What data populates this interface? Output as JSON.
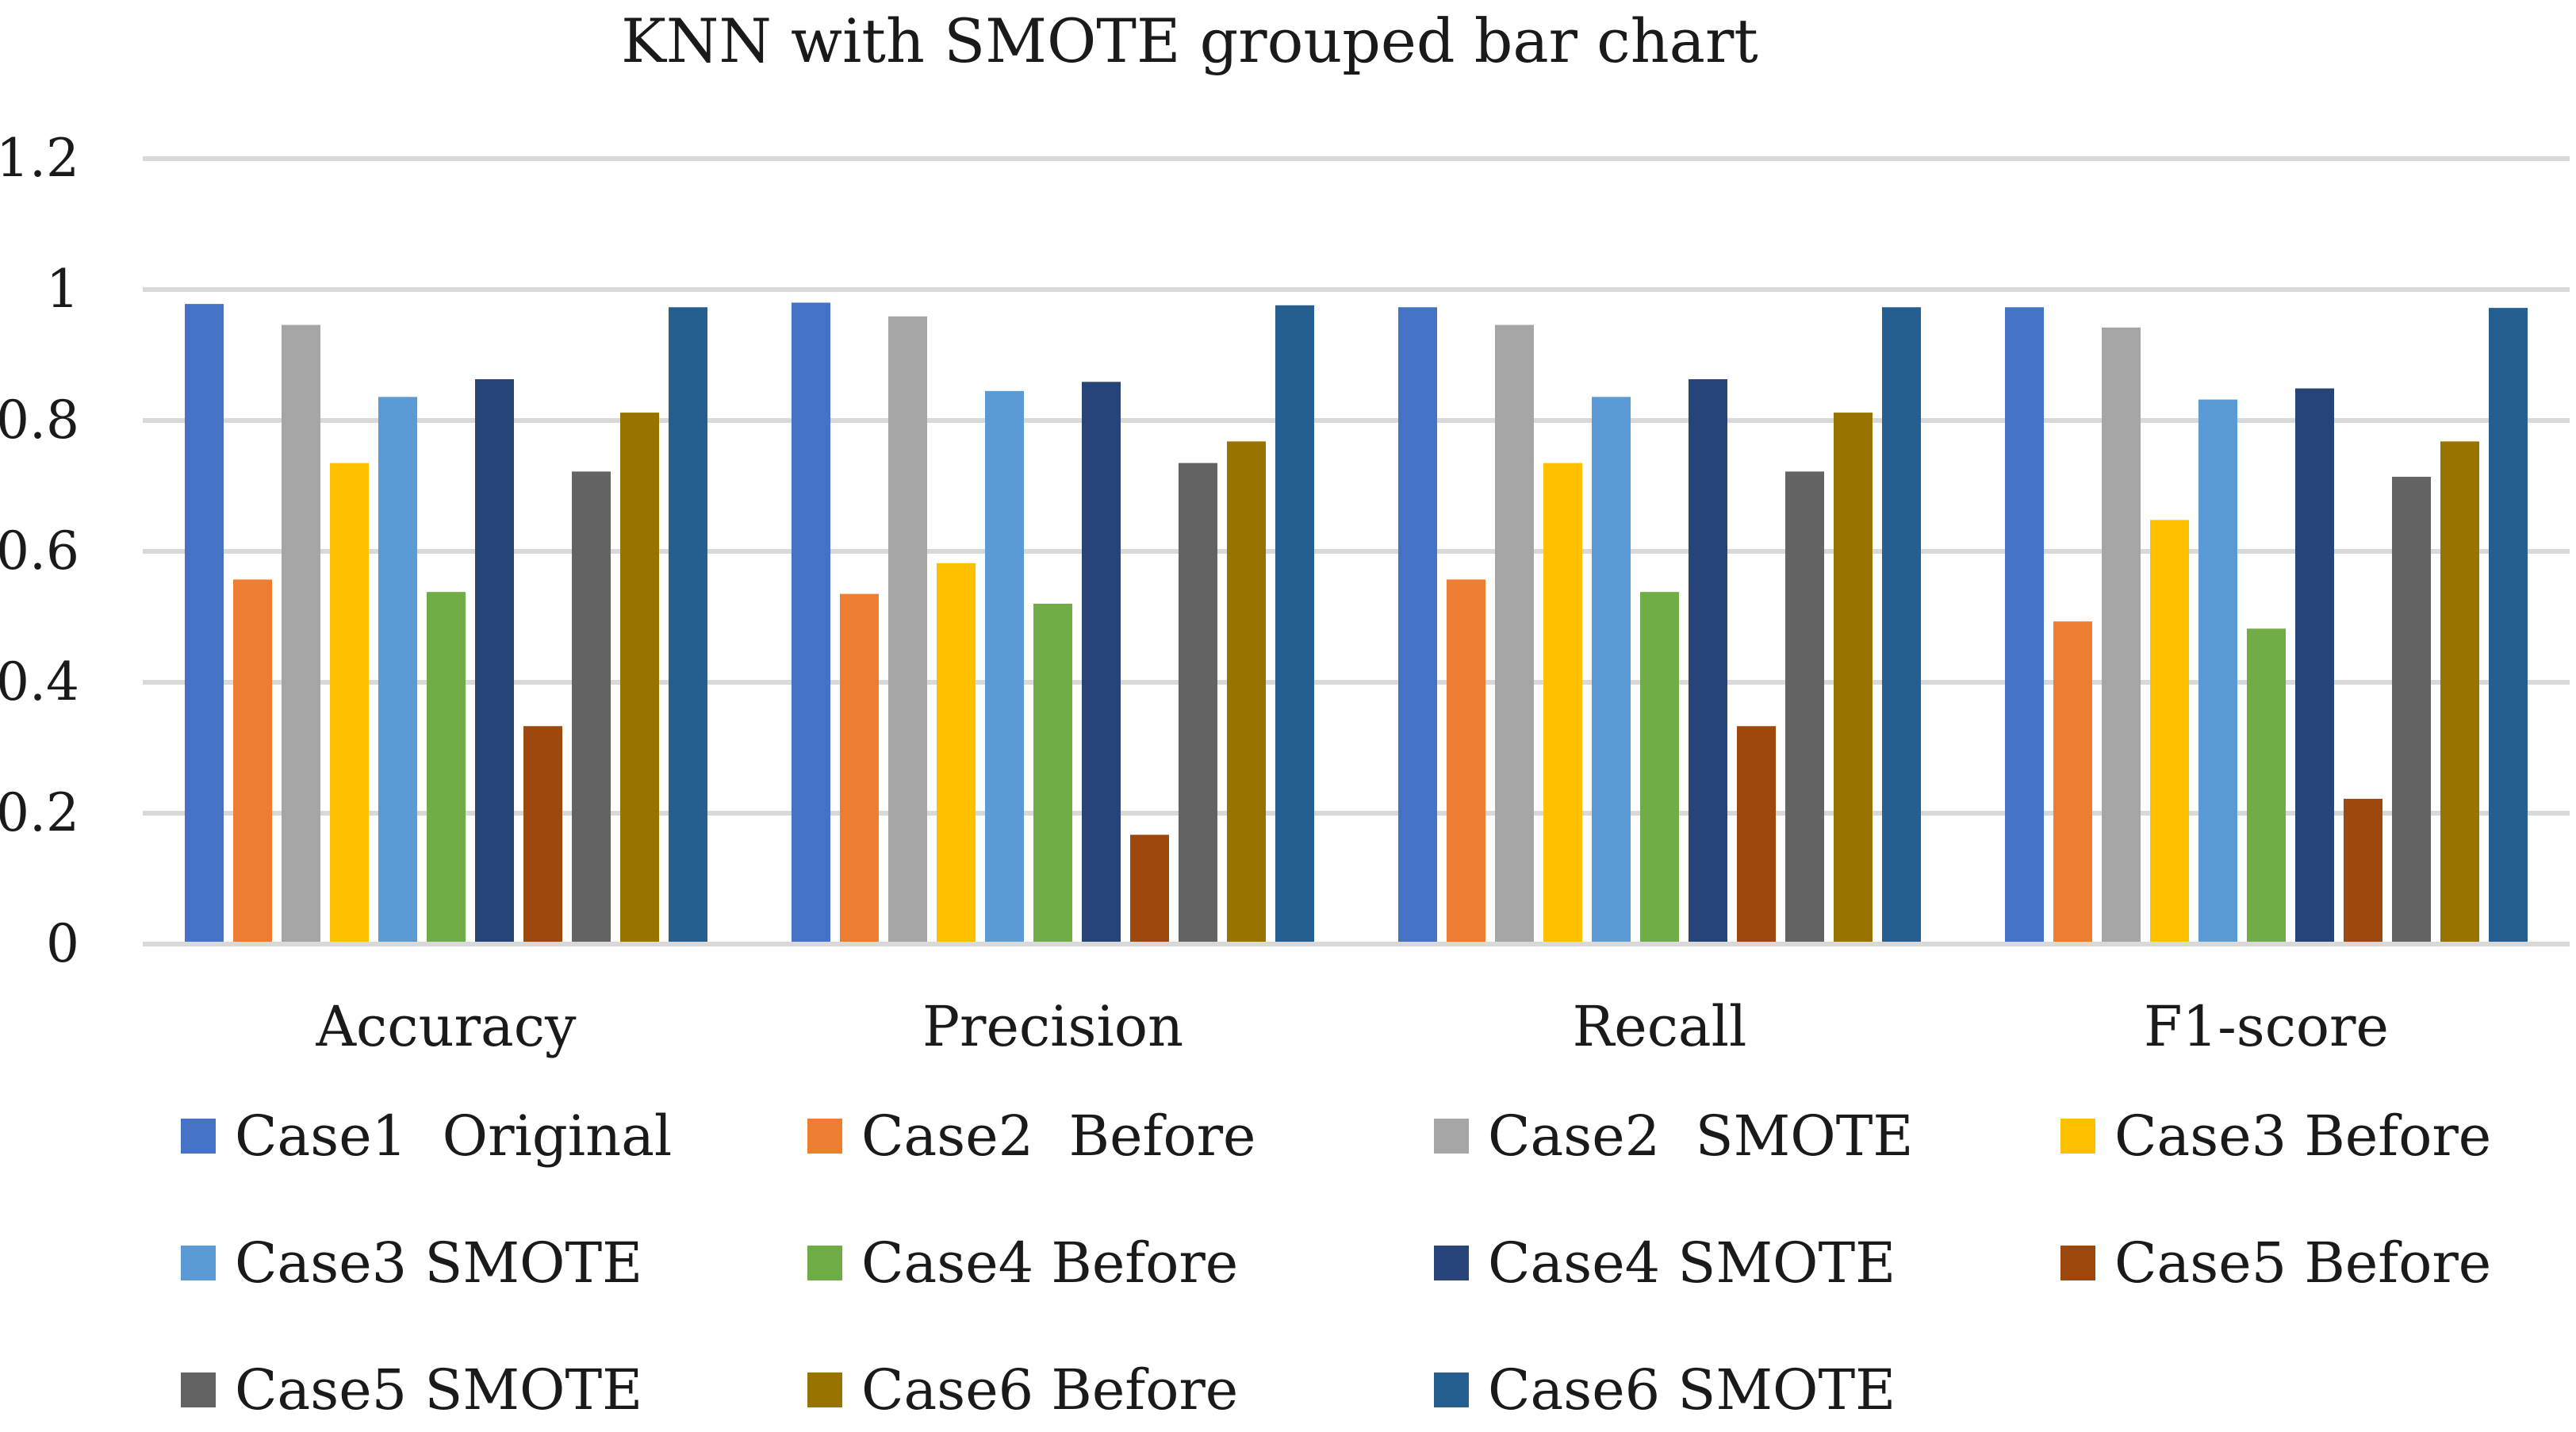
{
  "chart_data": {
    "type": "bar",
    "title": "KNN with SMOTE grouped bar chart",
    "xlabel": "",
    "ylabel": "",
    "ylim": [
      0,
      1.2
    ],
    "yticks": [
      "0",
      "0.2",
      "0.4",
      "0.6",
      "0.8",
      "1",
      "1.2"
    ],
    "grid": true,
    "legend_position": "bottom",
    "categories": [
      "Accuracy",
      "Precision",
      "Recall",
      "F1-score"
    ],
    "series": [
      {
        "name": "Case1  Original",
        "color": "#4472c4",
        "values": [
          0.978,
          0.98,
          0.973,
          0.973
        ]
      },
      {
        "name": "Case2  Before",
        "color": "#ed7d31",
        "values": [
          0.557,
          0.535,
          0.557,
          0.493
        ]
      },
      {
        "name": "Case2  SMOTE",
        "color": "#a5a5a5",
        "values": [
          0.946,
          0.959,
          0.946,
          0.942
        ]
      },
      {
        "name": "Case3 Before",
        "color": "#ffc000",
        "values": [
          0.735,
          0.582,
          0.735,
          0.648
        ]
      },
      {
        "name": "Case3 SMOTE",
        "color": "#5b9bd5",
        "values": [
          0.836,
          0.845,
          0.836,
          0.832
        ]
      },
      {
        "name": "Case4 Before",
        "color": "#70ad47",
        "values": [
          0.538,
          0.52,
          0.538,
          0.482
        ]
      },
      {
        "name": "Case4 SMOTE",
        "color": "#264478",
        "values": [
          0.863,
          0.859,
          0.863,
          0.849
        ]
      },
      {
        "name": "Case5 Before",
        "color": "#9e480e",
        "values": [
          0.333,
          0.167,
          0.333,
          0.222
        ]
      },
      {
        "name": "Case5 SMOTE",
        "color": "#636363",
        "values": [
          0.722,
          0.735,
          0.722,
          0.714
        ]
      },
      {
        "name": "Case6 Before",
        "color": "#997300",
        "values": [
          0.812,
          0.768,
          0.812,
          0.768
        ]
      },
      {
        "name": "Case6 SMOTE",
        "color": "#255e91",
        "values": [
          0.973,
          0.976,
          0.973,
          0.972
        ]
      }
    ]
  }
}
